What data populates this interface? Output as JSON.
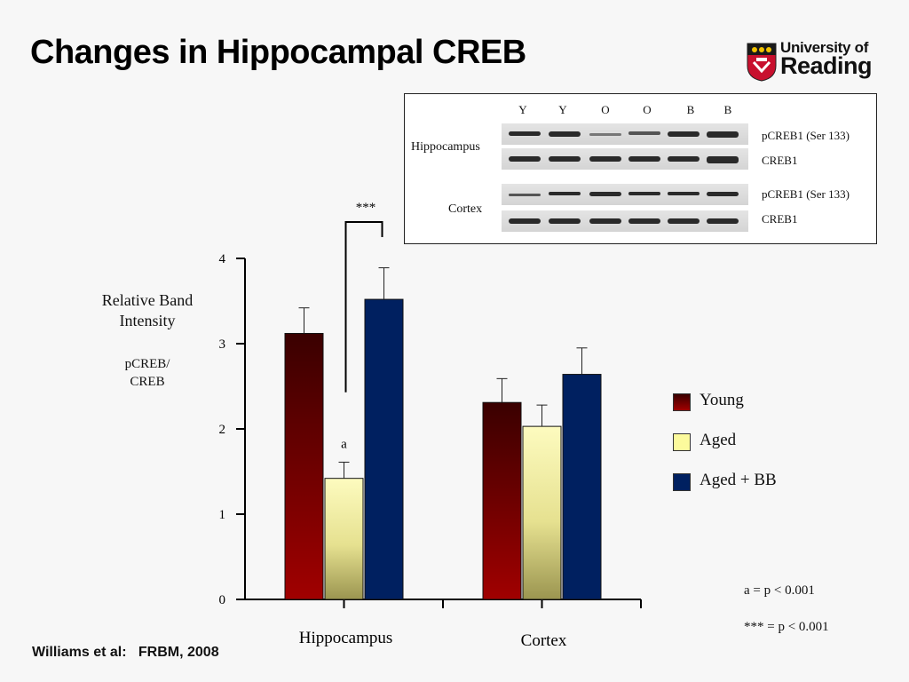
{
  "slide": {
    "title": "Changes in Hippocampal CREB"
  },
  "logo": {
    "line1": "University of",
    "line2": "Reading"
  },
  "citation": "Williams et al:   FRBM, 2008",
  "ylabel": {
    "line1": "Relative Band",
    "line2": "Intensity",
    "sub1": "pCREB/",
    "sub2": "CREB"
  },
  "blot": {
    "lanes": [
      "Y",
      "Y",
      "O",
      "O",
      "B",
      "B"
    ],
    "tissues": [
      "Hippocampus",
      "Cortex"
    ],
    "antibodies": [
      "pCREB1 (Ser 133)",
      "CREB1",
      "pCREB1 (Ser 133)",
      "CREB1"
    ]
  },
  "notes": {
    "a": "a = p < 0.001",
    "stars": "*** = p < 0.001"
  },
  "chart_data": {
    "type": "bar",
    "categories": [
      "Hippocampus",
      "Cortex"
    ],
    "series": [
      {
        "name": "Young",
        "values": [
          3.12,
          2.31
        ],
        "errors": [
          0.3,
          0.28
        ],
        "color": "#8b0000"
      },
      {
        "name": "Aged",
        "values": [
          1.42,
          2.03
        ],
        "errors": [
          0.19,
          0.25
        ],
        "color": "#f5f0a0"
      },
      {
        "name": "Aged + BB",
        "values": [
          3.52,
          2.64
        ],
        "errors": [
          0.37,
          0.31
        ],
        "color": "#002060"
      }
    ],
    "ylim": [
      0,
      4
    ],
    "yticks": [
      "0",
      "1",
      "2",
      "3",
      "4"
    ],
    "annotations": {
      "aged_hippocampus": "a",
      "significance": "***"
    }
  }
}
